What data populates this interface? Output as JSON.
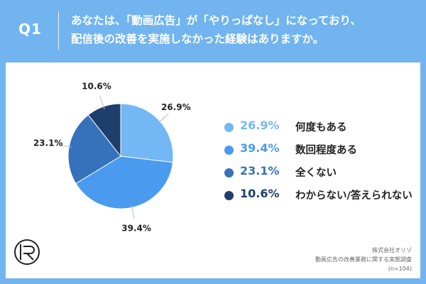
{
  "header": {
    "q_label": "Q1",
    "question_line1": "あなたは、「動画広告」が「やりっぱなし」になっており、",
    "question_line2": "配信後の改善を実施しなかった経験はありますか。"
  },
  "source": {
    "company": "株式会社オリゾ",
    "survey": "動画広告の改善業務に関する実態調査",
    "sample": "(n=104)"
  },
  "chart_data": {
    "type": "pie",
    "slices": [
      {
        "label": "何度もある",
        "value": 26.9,
        "pct_label": "26.9%",
        "color": "#73b8f5"
      },
      {
        "label": "数回程度ある",
        "value": 39.4,
        "pct_label": "39.4%",
        "color": "#4a9af0"
      },
      {
        "label": "全くない",
        "value": 23.1,
        "pct_label": "23.1%",
        "color": "#3672bc"
      },
      {
        "label": "わからない/答えられない",
        "value": 10.6,
        "pct_label": "10.6%",
        "color": "#1e3f6d"
      }
    ],
    "start_angle": "top",
    "direction": "clockwise",
    "legend_position": "right"
  }
}
